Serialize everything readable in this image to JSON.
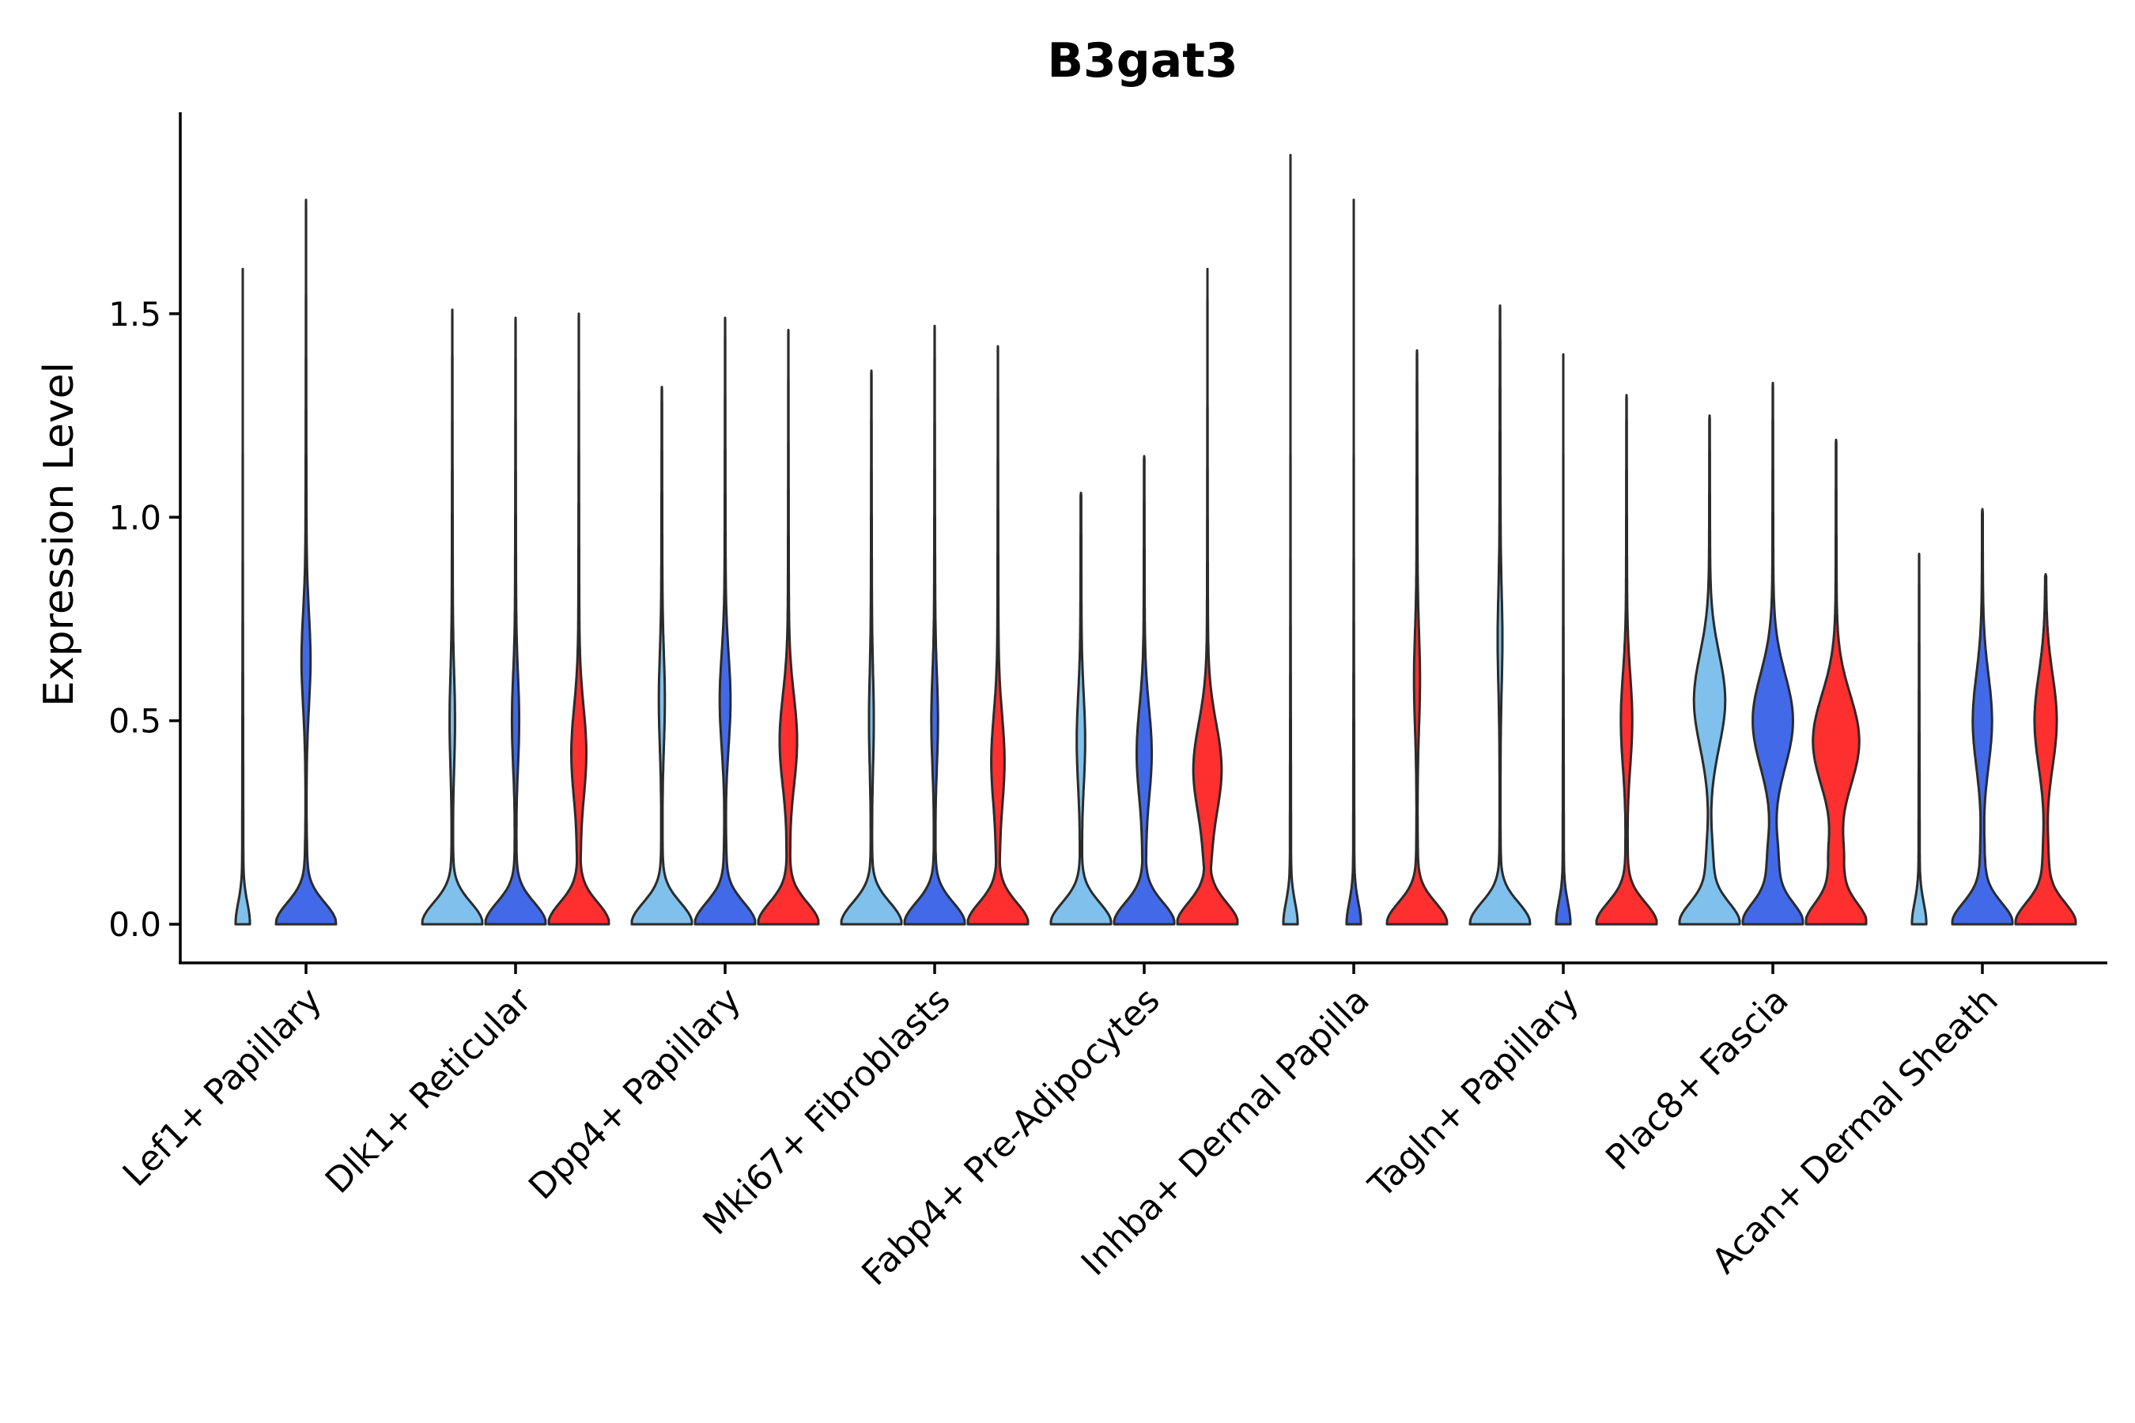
{
  "chart_data": {
    "type": "violin",
    "title": "B3gat3",
    "xlabel": "",
    "ylabel": "Expression Level",
    "ylim": [
      -0.095,
      1.995
    ],
    "yticks": [
      0.0,
      0.5,
      1.0,
      1.5
    ],
    "ytick_labels": [
      "0.0",
      "0.5",
      "1.0",
      "1.5"
    ],
    "grid": false,
    "series": [
      {
        "name": "group_1",
        "color": "#7FC1EC"
      },
      {
        "name": "group_2",
        "color": "#426AE8"
      },
      {
        "name": "group_3",
        "color": "#FE2F2F"
      }
    ],
    "categories": [
      "Lef1+ Papillary",
      "Dlk1+ Reticular",
      "Dpp4+ Papillary",
      "Mki67+ Fibroblasts",
      "Fabp4+ Pre-Adipocytes",
      "Inhba+ Dermal Papilla",
      "Tagln+ Papillary",
      "Plac8+ Fascia",
      "Acan+ Dermal Sheath"
    ],
    "violins": [
      {
        "category": 0,
        "series": 0,
        "max": 1.61,
        "base": 0.22,
        "mid": 0.0,
        "midw": 0.0,
        "low": 0.0
      },
      {
        "category": 0,
        "series": 1,
        "max": 1.78,
        "base": 1.0,
        "mid": 0.65,
        "midw": 0.13,
        "low": 0.3
      },
      {
        "category": 1,
        "series": 0,
        "max": 1.51,
        "base": 1.0,
        "mid": 0.5,
        "midw": 0.07,
        "low": 0.25
      },
      {
        "category": 1,
        "series": 1,
        "max": 1.49,
        "base": 1.0,
        "mid": 0.5,
        "midw": 0.1,
        "low": 0.25
      },
      {
        "category": 1,
        "series": 2,
        "max": 1.5,
        "base": 1.0,
        "mid": 0.42,
        "midw": 0.23,
        "low": 0.22
      },
      {
        "category": 2,
        "series": 0,
        "max": 1.32,
        "base": 1.0,
        "mid": 0.55,
        "midw": 0.08,
        "low": 0.25
      },
      {
        "category": 2,
        "series": 1,
        "max": 1.49,
        "base": 1.0,
        "mid": 0.55,
        "midw": 0.16,
        "low": 0.28
      },
      {
        "category": 2,
        "series": 2,
        "max": 1.46,
        "base": 1.0,
        "mid": 0.45,
        "midw": 0.27,
        "low": 0.22
      },
      {
        "category": 3,
        "series": 0,
        "max": 1.36,
        "base": 1.0,
        "mid": 0.5,
        "midw": 0.06,
        "low": 0.25
      },
      {
        "category": 3,
        "series": 1,
        "max": 1.47,
        "base": 1.0,
        "mid": 0.5,
        "midw": 0.09,
        "low": 0.25
      },
      {
        "category": 3,
        "series": 2,
        "max": 1.42,
        "base": 1.0,
        "mid": 0.4,
        "midw": 0.2,
        "low": 0.22
      },
      {
        "category": 4,
        "series": 0,
        "max": 1.06,
        "base": 1.0,
        "mid": 0.45,
        "midw": 0.12,
        "low": 0.23
      },
      {
        "category": 4,
        "series": 1,
        "max": 1.15,
        "base": 1.0,
        "mid": 0.42,
        "midw": 0.23,
        "low": 0.22
      },
      {
        "category": 4,
        "series": 2,
        "max": 1.61,
        "base": 1.0,
        "mid": 0.38,
        "midw": 0.45,
        "low": 0.2
      },
      {
        "category": 5,
        "series": 0,
        "max": 1.89,
        "base": 0.22,
        "mid": 0.0,
        "midw": 0.0,
        "low": 0.0
      },
      {
        "category": 5,
        "series": 1,
        "max": 1.78,
        "base": 0.22,
        "mid": 0.0,
        "midw": 0.0,
        "low": 0.0
      },
      {
        "category": 5,
        "series": 2,
        "max": 1.41,
        "base": 1.0,
        "mid": 0.6,
        "midw": 0.08,
        "low": 0.3
      },
      {
        "category": 6,
        "series": 0,
        "max": 1.52,
        "base": 1.0,
        "mid": 0.7,
        "midw": 0.06,
        "low": 0.3
      },
      {
        "category": 6,
        "series": 1,
        "max": 1.4,
        "base": 0.22,
        "mid": 0.0,
        "midw": 0.0,
        "low": 0.0
      },
      {
        "category": 6,
        "series": 2,
        "max": 1.3,
        "base": 1.0,
        "mid": 0.5,
        "midw": 0.17,
        "low": 0.23
      },
      {
        "category": 7,
        "series": 0,
        "max": 1.25,
        "base": 1.0,
        "mid": 0.55,
        "midw": 0.5,
        "low": 0.35
      },
      {
        "category": 7,
        "series": 1,
        "max": 1.33,
        "base": 1.0,
        "mid": 0.5,
        "midw": 0.65,
        "low": 0.45
      },
      {
        "category": 7,
        "series": 2,
        "max": 1.19,
        "base": 1.0,
        "mid": 0.45,
        "midw": 0.75,
        "low": 0.5
      },
      {
        "category": 8,
        "series": 0,
        "max": 0.91,
        "base": 0.22,
        "mid": 0.0,
        "midw": 0.0,
        "low": 0.0
      },
      {
        "category": 8,
        "series": 1,
        "max": 1.02,
        "base": 1.0,
        "mid": 0.5,
        "midw": 0.3,
        "low": 0.35
      },
      {
        "category": 8,
        "series": 2,
        "max": 0.86,
        "base": 1.0,
        "mid": 0.5,
        "midw": 0.35,
        "low": 0.4
      }
    ]
  }
}
